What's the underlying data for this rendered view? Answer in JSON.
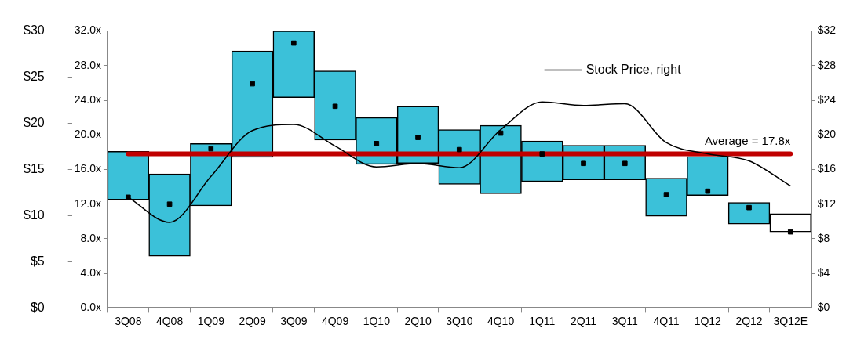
{
  "chart_data": {
    "type": "bar",
    "categories": [
      "3Q08",
      "4Q08",
      "1Q09",
      "2Q09",
      "3Q09",
      "4Q09",
      "1Q10",
      "2Q10",
      "3Q10",
      "4Q10",
      "1Q11",
      "2Q11",
      "3Q11",
      "4Q11",
      "1Q12",
      "2Q12",
      "3Q12E"
    ],
    "series": [
      {
        "colors": [
          "#3bc1d9",
          "#3bc1d9",
          "#3bc1d9",
          "#3bc1d9",
          "#3bc1d9",
          "#3bc1d9",
          "#3bc1d9",
          "#3bc1d9",
          "#3bc1d9",
          "#3bc1d9",
          "#3bc1d9",
          "#3bc1d9",
          "#3bc1d9",
          "#3bc1d9",
          "#3bc1d9",
          "#3bc1d9",
          "#ffffff"
        ],
        "base": [
          12.5,
          6.0,
          11.8,
          17.4,
          24.3,
          19.4,
          16.6,
          16.7,
          14.3,
          13.2,
          14.6,
          14.8,
          14.8,
          10.6,
          13.0,
          9.7,
          8.8
        ],
        "values": [
          5.6,
          9.5,
          7.2,
          12.3,
          7.7,
          8.0,
          5.4,
          6.6,
          6.3,
          7.9,
          4.7,
          4.0,
          4.0,
          4.4,
          4.5,
          2.5,
          2.1
        ]
      },
      {
        "type": "scatter",
        "color": "#000000",
        "marker": "square",
        "x": [
          "3Q08",
          "4Q08",
          "1Q09",
          "2Q09",
          "3Q09",
          "4Q09",
          "1Q10",
          "2Q10",
          "3Q10",
          "4Q10",
          "1Q11",
          "2Q11",
          "3Q11",
          "4Q11",
          "1Q12",
          "2Q12",
          "3Q12E"
        ],
        "values": [
          12.8,
          12.0,
          18.4,
          25.9,
          30.6,
          23.3,
          19.0,
          19.7,
          18.3,
          20.2,
          17.8,
          16.7,
          16.7,
          13.1,
          13.5,
          11.6,
          8.8
        ]
      },
      {
        "type": "line",
        "name": "Stock Price, right",
        "color": "#000000",
        "axis": "y2",
        "marker": "none",
        "values": [
          12.8,
          9.9,
          15.2,
          20.5,
          21.2,
          18.7,
          16.3,
          16.7,
          16.2,
          20.6,
          23.8,
          23.4,
          23.6,
          19.1,
          17.8,
          17.0,
          14.1
        ]
      }
    ],
    "ylim": [
      0,
      32
    ],
    "yticks": [
      {
        "value": 0,
        "label": "0.0x"
      },
      {
        "value": 4,
        "label": "4.0x"
      },
      {
        "value": 8,
        "label": "8.0x"
      },
      {
        "value": 12,
        "label": "12.0x"
      },
      {
        "value": 16,
        "label": "16.0x"
      },
      {
        "value": 20,
        "label": "20.0x"
      },
      {
        "value": 24,
        "label": "24.0x"
      },
      {
        "value": 28,
        "label": "28.0x"
      },
      {
        "value": 32,
        "label": "32.0x"
      }
    ],
    "y2lim": [
      0,
      32
    ],
    "y2ticks": [
      {
        "value": 0,
        "label": "$0"
      },
      {
        "value": 4,
        "label": "$4"
      },
      {
        "value": 8,
        "label": "$8"
      },
      {
        "value": 12,
        "label": "$12"
      },
      {
        "value": 16,
        "label": "$16"
      },
      {
        "value": 20,
        "label": "$20"
      },
      {
        "value": 24,
        "label": "$24"
      },
      {
        "value": 28,
        "label": "$28"
      },
      {
        "value": 32,
        "label": "$32"
      }
    ],
    "y3lim": [
      0,
      30
    ],
    "y3ticks": [
      {
        "value": 0,
        "label": "$0"
      },
      {
        "value": 5,
        "label": "$5"
      },
      {
        "value": 10,
        "label": "$10"
      },
      {
        "value": 15,
        "label": "$15"
      },
      {
        "value": 20,
        "label": "$20"
      },
      {
        "value": 25,
        "label": "$25"
      },
      {
        "value": 30,
        "label": "$30"
      }
    ],
    "ref_lines": [
      {
        "axis": "y",
        "value": 17.8,
        "label": "Average = 17.8x",
        "color": "#c00000"
      }
    ],
    "grid": false,
    "legend": "top right"
  }
}
